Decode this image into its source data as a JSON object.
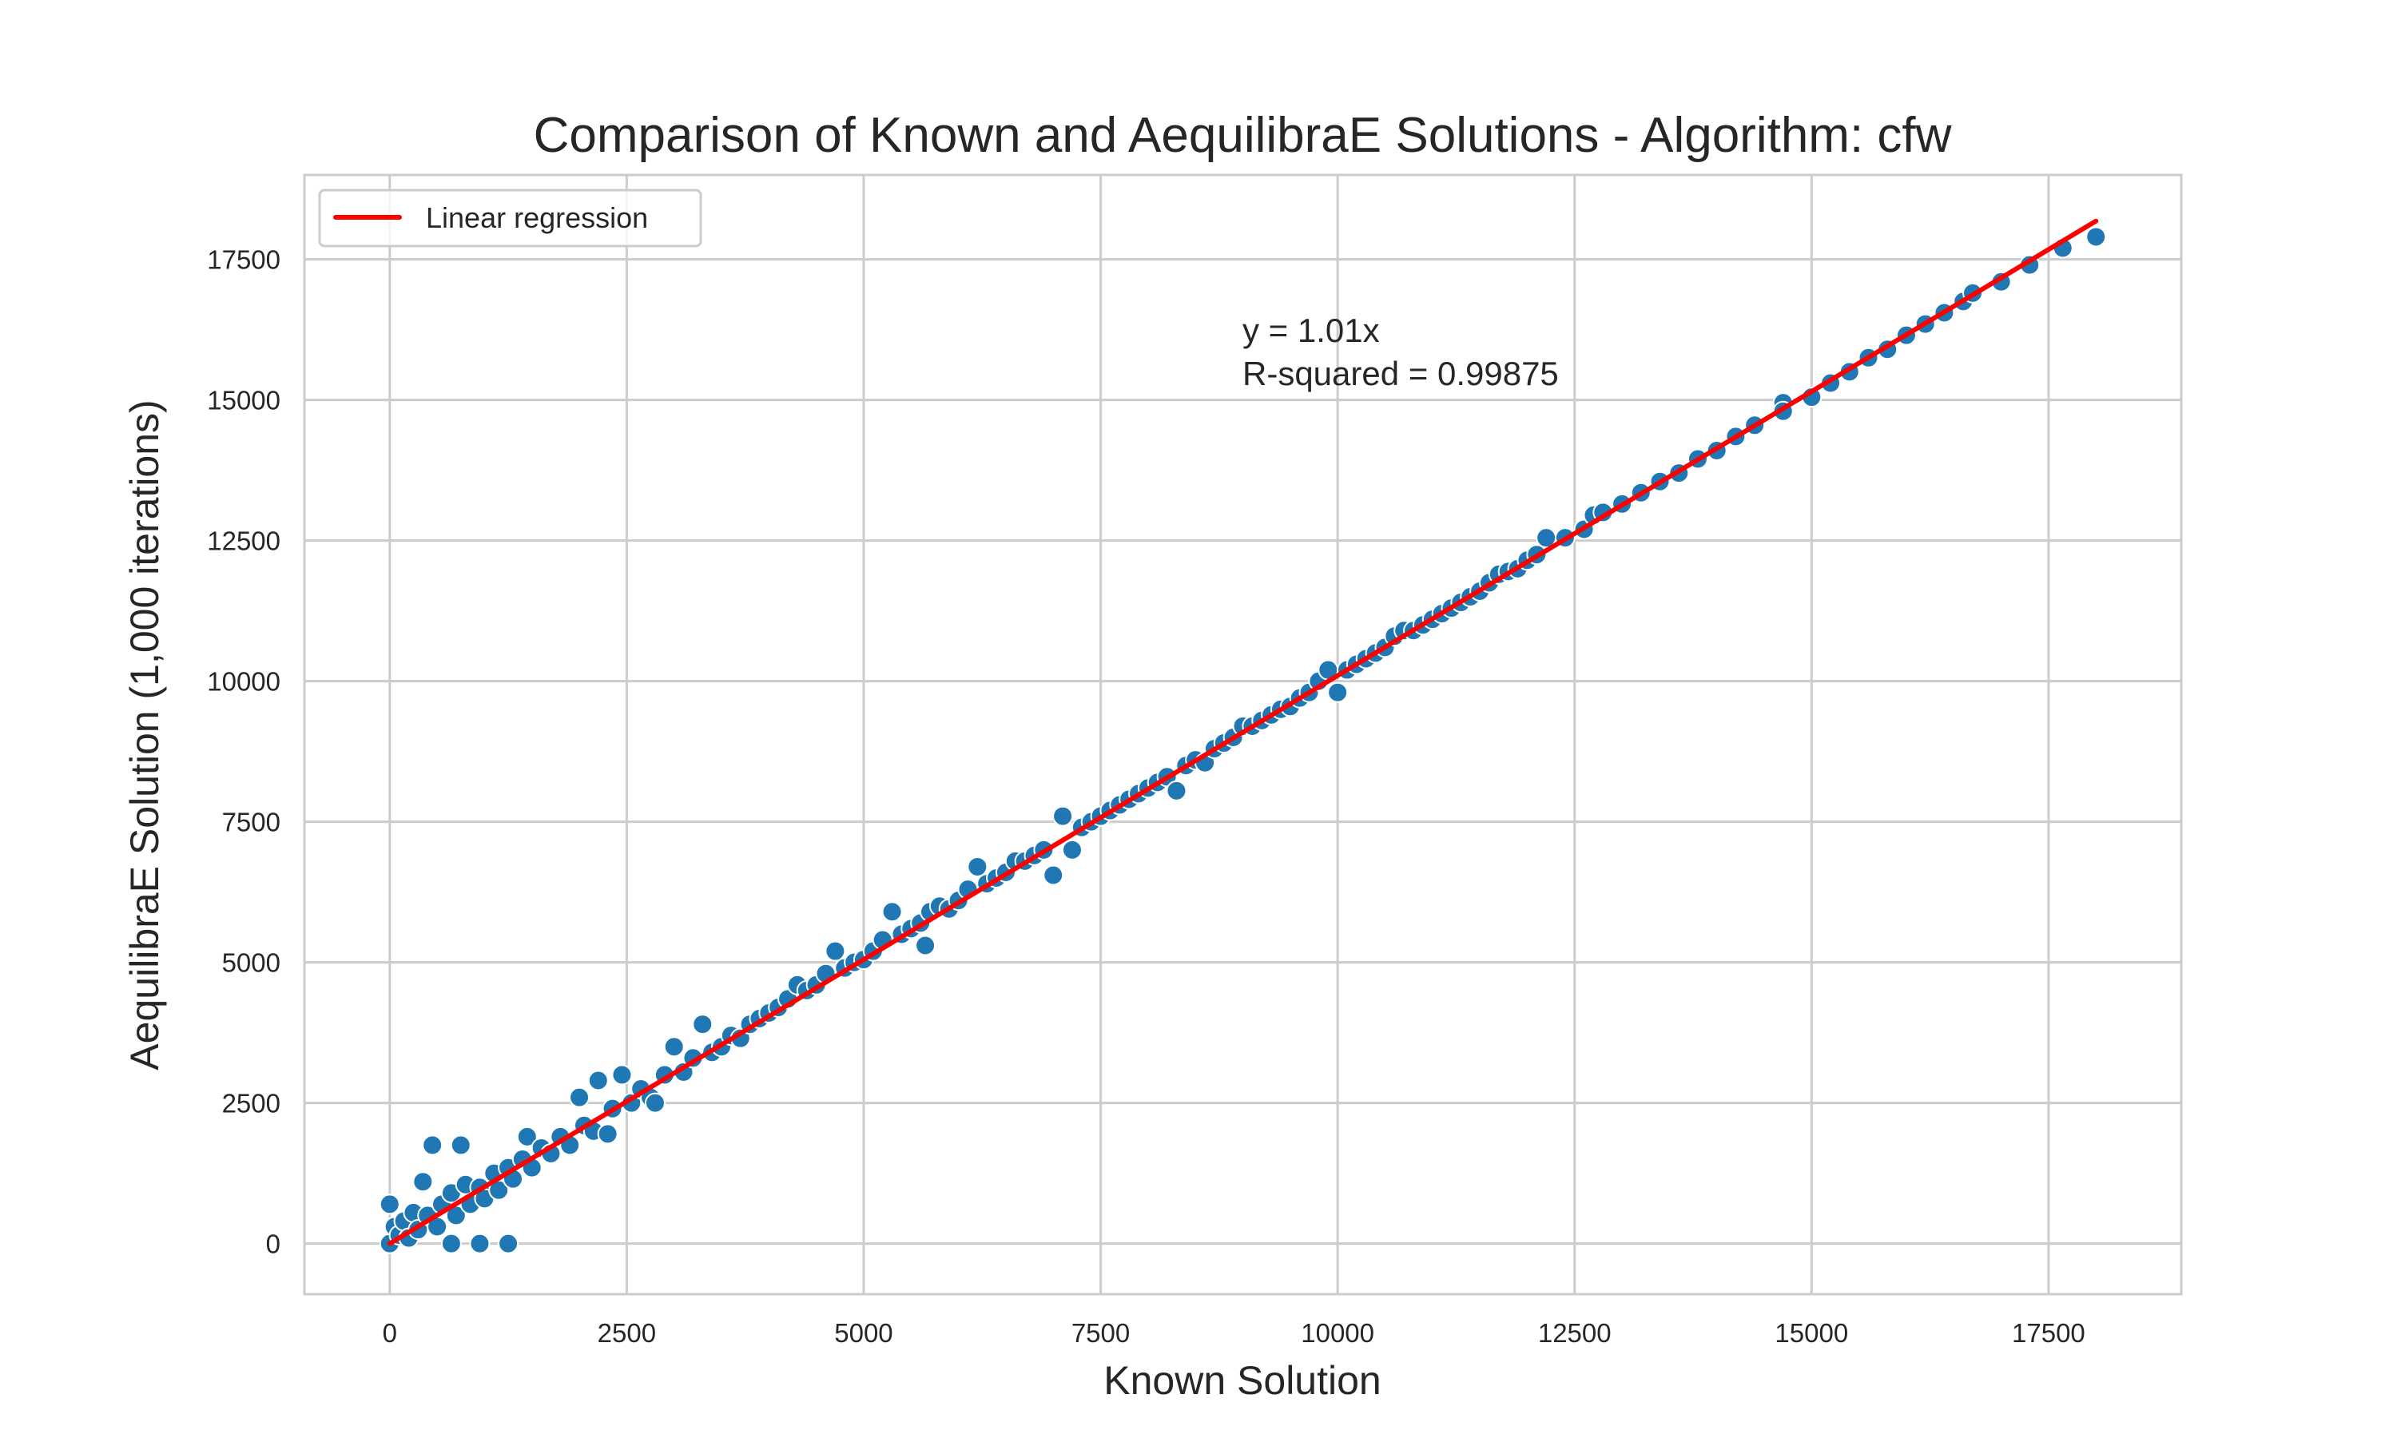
{
  "chart_data": {
    "type": "scatter",
    "title": "Comparison of Known and AequilibraE Solutions - Algorithm: cfw",
    "xlabel": "Known Solution",
    "ylabel": "AequilibraE Solution (1,000 iterations)",
    "xlim": [
      -900,
      18900
    ],
    "ylim": [
      -900,
      19000
    ],
    "xticks": [
      0,
      2500,
      5000,
      7500,
      10000,
      12500,
      15000,
      17500
    ],
    "yticks": [
      0,
      2500,
      5000,
      7500,
      10000,
      12500,
      15000,
      17500
    ],
    "grid": true,
    "legend": {
      "placement": "top-left",
      "entries": [
        "Linear regression"
      ]
    },
    "regression": {
      "slope": 1.01,
      "x_range": [
        0,
        18000
      ],
      "color": "#ff0000"
    },
    "annotation": [
      "y = 1.01x",
      "R-squared = 0.99875"
    ],
    "marker_color": "#1f77b4",
    "points": [
      [
        0,
        0
      ],
      [
        0,
        700
      ],
      [
        50,
        300
      ],
      [
        100,
        150
      ],
      [
        150,
        400
      ],
      [
        200,
        100
      ],
      [
        250,
        550
      ],
      [
        300,
        250
      ],
      [
        350,
        1100
      ],
      [
        400,
        500
      ],
      [
        450,
        1750
      ],
      [
        500,
        300
      ],
      [
        550,
        700
      ],
      [
        650,
        0
      ],
      [
        650,
        900
      ],
      [
        700,
        500
      ],
      [
        750,
        1750
      ],
      [
        800,
        1050
      ],
      [
        850,
        700
      ],
      [
        950,
        0
      ],
      [
        950,
        1000
      ],
      [
        1000,
        800
      ],
      [
        1100,
        1250
      ],
      [
        1150,
        950
      ],
      [
        1250,
        0
      ],
      [
        1250,
        1350
      ],
      [
        1300,
        1150
      ],
      [
        1400,
        1500
      ],
      [
        1450,
        1900
      ],
      [
        1500,
        1350
      ],
      [
        1600,
        1700
      ],
      [
        1700,
        1600
      ],
      [
        1800,
        1900
      ],
      [
        1900,
        1750
      ],
      [
        2000,
        2600
      ],
      [
        2050,
        2100
      ],
      [
        2150,
        2000
      ],
      [
        2200,
        2900
      ],
      [
        2300,
        1950
      ],
      [
        2350,
        2400
      ],
      [
        2450,
        3000
      ],
      [
        2550,
        2500
      ],
      [
        2650,
        2750
      ],
      [
        2750,
        2600
      ],
      [
        2800,
        2500
      ],
      [
        2900,
        3000
      ],
      [
        3000,
        3500
      ],
      [
        3100,
        3050
      ],
      [
        3200,
        3300
      ],
      [
        3300,
        3900
      ],
      [
        3400,
        3400
      ],
      [
        3500,
        3500
      ],
      [
        3600,
        3700
      ],
      [
        3700,
        3650
      ],
      [
        3800,
        3900
      ],
      [
        3900,
        4000
      ],
      [
        4000,
        4100
      ],
      [
        4100,
        4200
      ],
      [
        4200,
        4350
      ],
      [
        4300,
        4600
      ],
      [
        4400,
        4500
      ],
      [
        4500,
        4600
      ],
      [
        4600,
        4800
      ],
      [
        4700,
        5200
      ],
      [
        4800,
        4900
      ],
      [
        4900,
        5000
      ],
      [
        5000,
        5050
      ],
      [
        5100,
        5200
      ],
      [
        5200,
        5400
      ],
      [
        5300,
        5900
      ],
      [
        5400,
        5500
      ],
      [
        5500,
        5600
      ],
      [
        5600,
        5700
      ],
      [
        5650,
        5300
      ],
      [
        5700,
        5900
      ],
      [
        5800,
        6000
      ],
      [
        5900,
        5950
      ],
      [
        6000,
        6100
      ],
      [
        6100,
        6300
      ],
      [
        6200,
        6700
      ],
      [
        6300,
        6400
      ],
      [
        6400,
        6500
      ],
      [
        6500,
        6600
      ],
      [
        6600,
        6800
      ],
      [
        6700,
        6800
      ],
      [
        6800,
        6900
      ],
      [
        6900,
        7000
      ],
      [
        7000,
        6550
      ],
      [
        7100,
        7600
      ],
      [
        7200,
        7000
      ],
      [
        7300,
        7400
      ],
      [
        7400,
        7500
      ],
      [
        7500,
        7600
      ],
      [
        7600,
        7700
      ],
      [
        7700,
        7800
      ],
      [
        7800,
        7900
      ],
      [
        7900,
        8000
      ],
      [
        8000,
        8100
      ],
      [
        8100,
        8200
      ],
      [
        8200,
        8300
      ],
      [
        8300,
        8050
      ],
      [
        8400,
        8500
      ],
      [
        8500,
        8600
      ],
      [
        8600,
        8550
      ],
      [
        8700,
        8800
      ],
      [
        8800,
        8900
      ],
      [
        8900,
        9000
      ],
      [
        9000,
        9200
      ],
      [
        9100,
        9200
      ],
      [
        9200,
        9300
      ],
      [
        9300,
        9400
      ],
      [
        9400,
        9500
      ],
      [
        9500,
        9550
      ],
      [
        9600,
        9700
      ],
      [
        9700,
        9800
      ],
      [
        9800,
        10000
      ],
      [
        9900,
        10200
      ],
      [
        10000,
        9800
      ],
      [
        10100,
        10200
      ],
      [
        10200,
        10300
      ],
      [
        10300,
        10400
      ],
      [
        10400,
        10500
      ],
      [
        10500,
        10600
      ],
      [
        10600,
        10800
      ],
      [
        10700,
        10900
      ],
      [
        10800,
        10900
      ],
      [
        10900,
        11000
      ],
      [
        11000,
        11100
      ],
      [
        11100,
        11200
      ],
      [
        11200,
        11300
      ],
      [
        11300,
        11400
      ],
      [
        11400,
        11500
      ],
      [
        11500,
        11600
      ],
      [
        11600,
        11750
      ],
      [
        11700,
        11900
      ],
      [
        11800,
        11950
      ],
      [
        11900,
        12000
      ],
      [
        12000,
        12150
      ],
      [
        12100,
        12250
      ],
      [
        12200,
        12550
      ],
      [
        12400,
        12550
      ],
      [
        12600,
        12700
      ],
      [
        12700,
        12950
      ],
      [
        12800,
        13000
      ],
      [
        13000,
        13150
      ],
      [
        13200,
        13350
      ],
      [
        13400,
        13550
      ],
      [
        13600,
        13700
      ],
      [
        13800,
        13950
      ],
      [
        14000,
        14100
      ],
      [
        14200,
        14350
      ],
      [
        14400,
        14550
      ],
      [
        14700,
        14950
      ],
      [
        14700,
        14800
      ],
      [
        15000,
        15050
      ],
      [
        15200,
        15300
      ],
      [
        15400,
        15500
      ],
      [
        15600,
        15750
      ],
      [
        15800,
        15900
      ],
      [
        16000,
        16150
      ],
      [
        16200,
        16350
      ],
      [
        16400,
        16550
      ],
      [
        16600,
        16750
      ],
      [
        16700,
        16900
      ],
      [
        17000,
        17100
      ],
      [
        17300,
        17400
      ],
      [
        17650,
        17700
      ],
      [
        18000,
        17900
      ]
    ]
  }
}
